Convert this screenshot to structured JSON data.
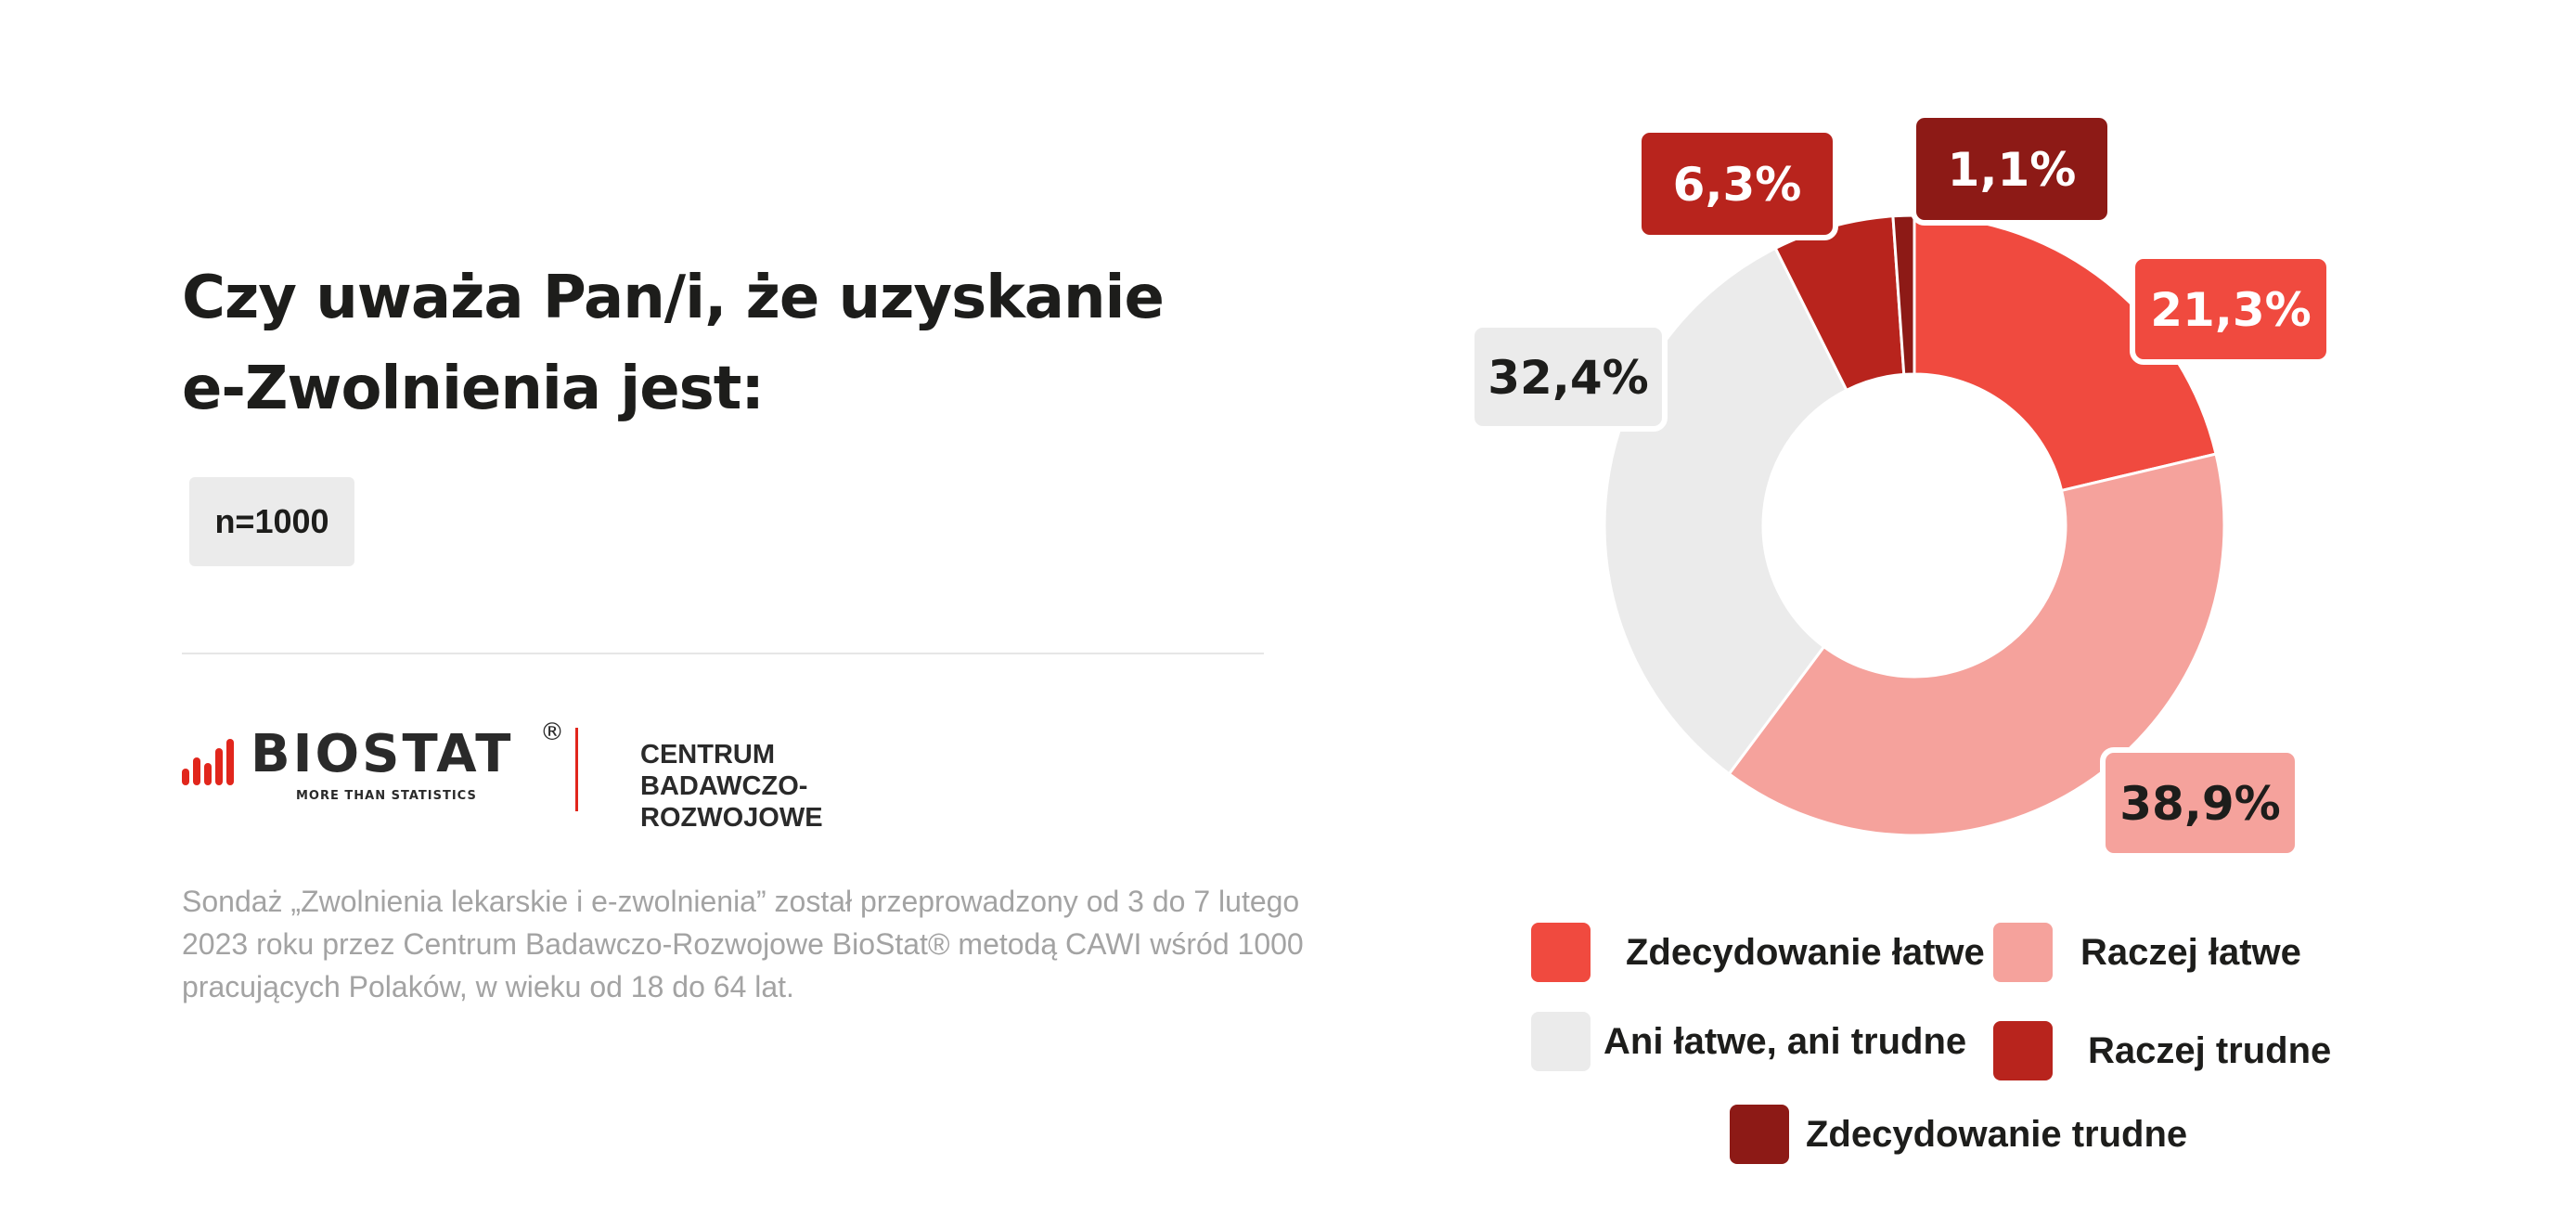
{
  "title": {
    "line1": "Czy uważa Pan/i, że uzyskanie",
    "line2": "e-Zwolnienia jest:"
  },
  "sample_badge": "n=1000",
  "logo": {
    "wordmark": "BIOSTAT",
    "registered": "®",
    "tagline": "MORE THAN STATISTICS",
    "centrum_line1": "CENTRUM",
    "centrum_line2": "BADAWCZO-ROZWOJOWE"
  },
  "note": {
    "line1": "Sondaż „Zwolnienia lekarskie i e-zwolnienia” został przeprowadzony od 3 do 7 lutego",
    "line2": "2023 roku przez Centrum Badawczo-Rozwojowe BioStat® metodą CAWI wśród 1000",
    "line3": "pracujących Polaków, w wieku od 18 do 64 lat."
  },
  "colors": {
    "brand_red": "#e1261c",
    "zdecydowanie_latwe": "#f04a3f",
    "raczej_latwe": "#f5a29c",
    "ani_latwe_ani_trudne": "#ebebeb",
    "raczej_trudne": "#b8241d",
    "zdecydowanie_trudne": "#8d1a16"
  },
  "chart_data": {
    "type": "pie",
    "donut": true,
    "title": "Czy uważa Pan/i, że uzyskanie e-Zwolnienia jest:",
    "series": [
      {
        "name": "Zdecydowanie łatwe",
        "value": 21.3,
        "label": "21,3%",
        "color": "#f04a3f"
      },
      {
        "name": "Raczej łatwe",
        "value": 38.9,
        "label": "38,9%",
        "color": "#f5a29c"
      },
      {
        "name": "Ani łatwe, ani trudne",
        "value": 32.4,
        "label": "32,4%",
        "color": "#ebebeb"
      },
      {
        "name": "Raczej trudne",
        "value": 6.3,
        "label": "6,3%",
        "color": "#b8241d"
      },
      {
        "name": "Zdecydowanie trudne",
        "value": 1.1,
        "label": "1,1%",
        "color": "#8d1a16"
      }
    ],
    "legend_position": "bottom"
  }
}
